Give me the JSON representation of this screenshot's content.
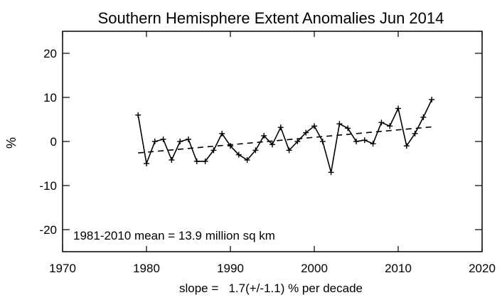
{
  "chart_data": {
    "type": "line",
    "title": "Southern Hemisphere Extent Anomalies Jun 2014",
    "xlabel": "slope =   1.7(+/-1.1) % per decade",
    "ylabel": "%",
    "annotation": "1981-2010 mean =  13.9 million sq km",
    "xlim": [
      1970,
      2020
    ],
    "ylim": [
      -25,
      25
    ],
    "x_ticks": [
      1970,
      1980,
      1990,
      2000,
      2010,
      2020
    ],
    "y_ticks": [
      -20,
      -10,
      0,
      10,
      20
    ],
    "grid": false,
    "series": [
      {
        "x": [
          1979,
          1980,
          1981,
          1982,
          1983,
          1984,
          1985,
          1986,
          1987,
          1988,
          1989,
          1990,
          1991,
          1992,
          1993,
          1994,
          1995,
          1996,
          1997,
          1998,
          1999,
          2000,
          2001,
          2002,
          2003,
          2004,
          2005,
          2006,
          2007,
          2008,
          2009,
          2010,
          2011,
          2012,
          2013,
          2014
        ],
        "values": [
          6.0,
          -5.0,
          0.0,
          0.5,
          -4.2,
          0.0,
          0.5,
          -4.5,
          -4.5,
          -2.0,
          1.8,
          -1.0,
          -3.0,
          -4.2,
          -2.0,
          1.3,
          -0.7,
          3.2,
          -2.0,
          0.0,
          2.0,
          3.5,
          0.0,
          -7.0,
          4.0,
          3.0,
          0.0,
          0.3,
          -0.5,
          4.3,
          3.5,
          7.5,
          -1.0,
          1.8,
          5.5,
          9.5
        ],
        "style": "solid",
        "marker": "plus"
      },
      {
        "x": [
          1979,
          2014
        ],
        "values": [
          -2.6,
          3.3
        ],
        "style": "dashed"
      }
    ]
  }
}
